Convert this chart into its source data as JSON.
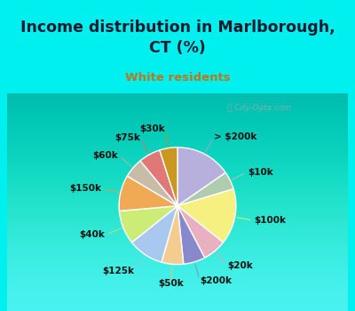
{
  "title": "Income distribution in Marlborough,\nCT (%)",
  "subtitle": "White residents",
  "title_color": "#1a1a2e",
  "subtitle_color": "#b87820",
  "background_outer": "#00efef",
  "background_inner_top": "#e0f0e8",
  "background_inner_bottom": "#f8fcfa",
  "labels": [
    "> $200k",
    "$10k",
    "$100k",
    "$20k",
    "$200k",
    "$50k",
    "$125k",
    "$40k",
    "$150k",
    "$60k",
    "$75k",
    "$30k"
  ],
  "values": [
    14.0,
    4.5,
    14.0,
    6.0,
    5.5,
    5.5,
    9.0,
    8.5,
    9.0,
    5.0,
    5.5,
    4.5
  ],
  "colors": [
    "#b8b0dc",
    "#b0ccb0",
    "#f5f080",
    "#e8b0c0",
    "#8888cc",
    "#f5cc90",
    "#a8c8f0",
    "#ccec78",
    "#f0aa55",
    "#c8bca8",
    "#e07878",
    "#c89820"
  ],
  "wedge_line_color": "#ffffff",
  "label_fontsize": 7.5,
  "label_color": "#111111",
  "line_colors": [
    "#a8a0cc",
    "#a8c8a8",
    "#e8e870",
    "#e0a8b8",
    "#8888cc",
    "#e8c088",
    "#a0c0e8",
    "#c0e068",
    "#e8a048",
    "#c0b0a0",
    "#d87070",
    "#c09018"
  ]
}
